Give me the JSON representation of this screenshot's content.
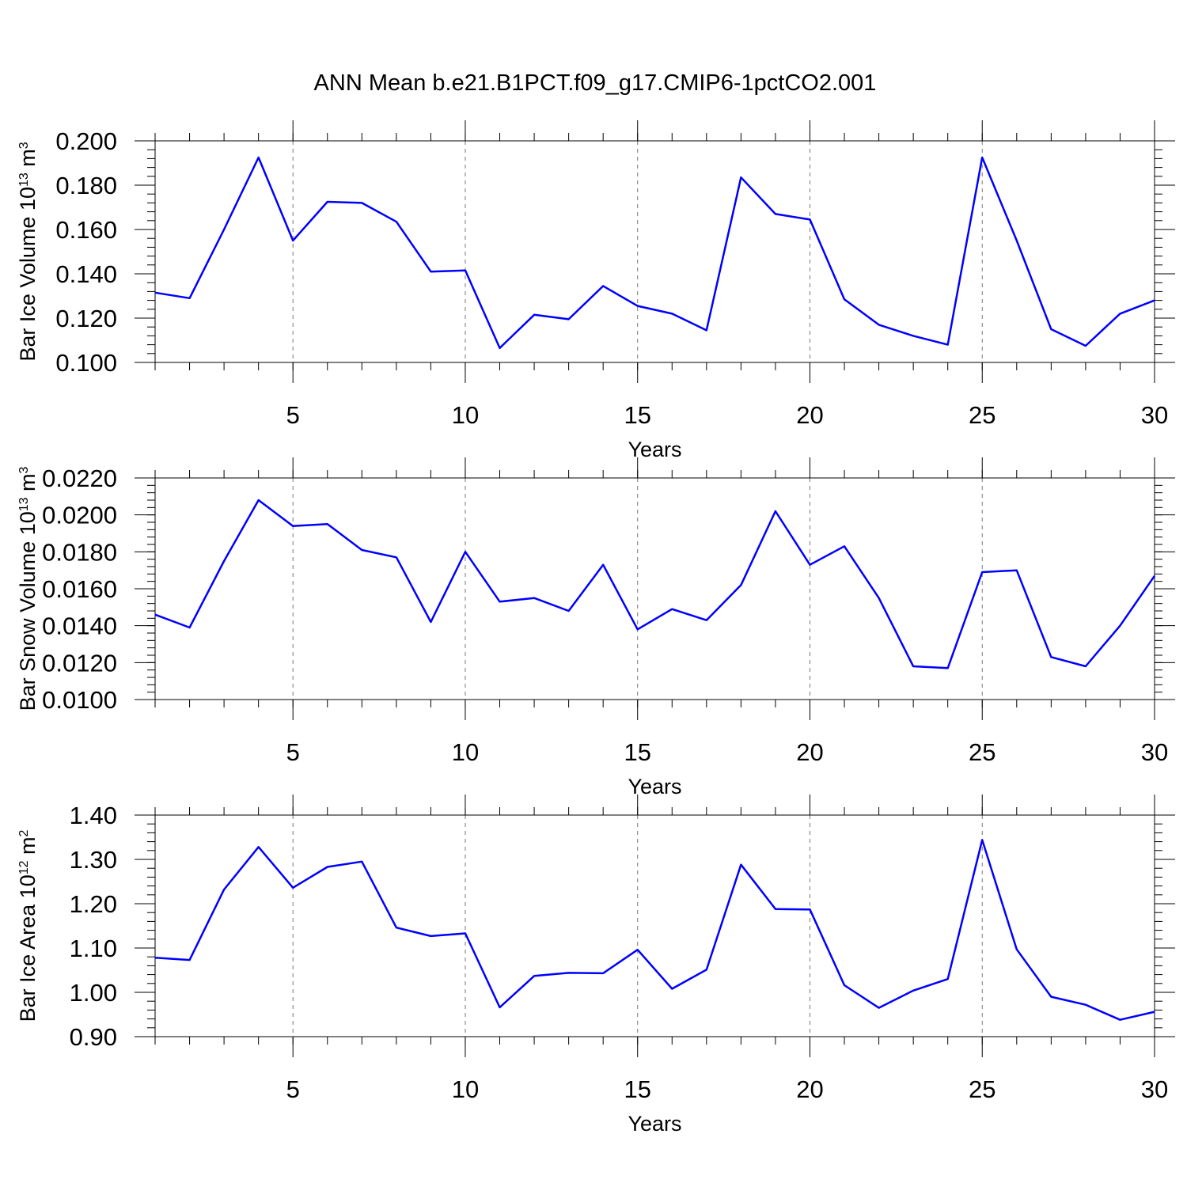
{
  "title": "ANN Mean b.e21.B1PCT.f09_g17.CMIP6-1pctCO2.001",
  "colors": {
    "line": "#0000ff",
    "grid": "#777777",
    "axis": "#000000"
  },
  "chart_data": [
    {
      "type": "line",
      "title": "",
      "xlabel": "Years",
      "ylabel": {
        "text": "Bar Ice Volume 10",
        "sup": "13",
        "unit": " m",
        "unit_sup": "3"
      },
      "xlim": [
        1,
        30
      ],
      "ylim": [
        0.1,
        0.2
      ],
      "xticks": [
        5,
        10,
        15,
        20,
        25,
        30
      ],
      "yticks": [
        "0.100",
        "0.120",
        "0.140",
        "0.160",
        "0.180",
        "0.200"
      ],
      "grid": "vertical-dashed",
      "x": [
        1,
        2,
        3,
        4,
        5,
        6,
        7,
        8,
        9,
        10,
        11,
        12,
        13,
        14,
        15,
        16,
        17,
        18,
        19,
        20,
        21,
        22,
        23,
        24,
        25,
        26,
        27,
        28,
        29,
        30
      ],
      "series": [
        {
          "values": [
            0.1315,
            0.129,
            0.16,
            0.1925,
            0.155,
            0.1725,
            0.172,
            0.1635,
            0.141,
            0.1415,
            0.1065,
            0.1215,
            0.1195,
            0.1345,
            0.1255,
            0.122,
            0.1145,
            0.1835,
            0.167,
            0.1645,
            0.1285,
            0.117,
            0.112,
            0.108,
            0.1925,
            0.155,
            0.115,
            0.1075,
            0.122,
            0.128
          ]
        }
      ]
    },
    {
      "type": "line",
      "title": "",
      "xlabel": "Years",
      "ylabel": {
        "text": "Bar Snow Volume 10",
        "sup": "13",
        "unit": " m",
        "unit_sup": "3"
      },
      "xlim": [
        1,
        30
      ],
      "ylim": [
        0.01,
        0.022
      ],
      "xticks": [
        5,
        10,
        15,
        20,
        25,
        30
      ],
      "yticks": [
        "0.0100",
        "0.0120",
        "0.0140",
        "0.0160",
        "0.0180",
        "0.0200",
        "0.0220"
      ],
      "grid": "vertical-dashed",
      "x": [
        1,
        2,
        3,
        4,
        5,
        6,
        7,
        8,
        9,
        10,
        11,
        12,
        13,
        14,
        15,
        16,
        17,
        18,
        19,
        20,
        21,
        22,
        23,
        24,
        25,
        26,
        27,
        28,
        29,
        30
      ],
      "series": [
        {
          "values": [
            0.0146,
            0.0139,
            0.0175,
            0.0208,
            0.0194,
            0.0195,
            0.0181,
            0.0177,
            0.0142,
            0.018,
            0.0153,
            0.0155,
            0.0148,
            0.0173,
            0.0138,
            0.0149,
            0.0143,
            0.0162,
            0.0202,
            0.0173,
            0.0183,
            0.0155,
            0.0118,
            0.0117,
            0.0169,
            0.017,
            0.0123,
            0.0118,
            0.014,
            0.0167
          ]
        }
      ]
    },
    {
      "type": "line",
      "title": "",
      "xlabel": "Years",
      "ylabel": {
        "text": "Bar Ice Area 10",
        "sup": "12",
        "unit": " m",
        "unit_sup": "2"
      },
      "xlim": [
        1,
        30
      ],
      "ylim": [
        0.9,
        1.4
      ],
      "xticks": [
        5,
        10,
        15,
        20,
        25,
        30
      ],
      "yticks": [
        "0.90",
        "1.00",
        "1.10",
        "1.20",
        "1.30",
        "1.40"
      ],
      "grid": "vertical-dashed",
      "x": [
        1,
        2,
        3,
        4,
        5,
        6,
        7,
        8,
        9,
        10,
        11,
        12,
        13,
        14,
        15,
        16,
        17,
        18,
        19,
        20,
        21,
        22,
        23,
        24,
        25,
        26,
        27,
        28,
        29,
        30
      ],
      "series": [
        {
          "values": [
            1.078,
            1.073,
            1.232,
            1.328,
            1.236,
            1.283,
            1.295,
            1.146,
            1.127,
            1.133,
            0.966,
            1.037,
            1.044,
            1.043,
            1.096,
            1.008,
            1.051,
            1.288,
            1.188,
            1.187,
            1.016,
            0.965,
            1.004,
            1.03,
            1.344,
            1.097,
            0.99,
            0.972,
            0.938,
            0.956
          ]
        }
      ]
    }
  ]
}
